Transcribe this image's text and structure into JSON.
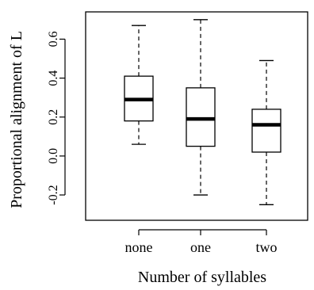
{
  "chart_data": {
    "type": "boxplot",
    "xlabel": "Number of syllables",
    "ylabel": "Proportional alignment of L",
    "categories": [
      "none",
      "one",
      "two"
    ],
    "ylim": [
      -0.33,
      0.74
    ],
    "yticks": [
      -0.2,
      0.0,
      0.2,
      0.4,
      0.6
    ],
    "ytick_labels": [
      "-0.2",
      "0.0",
      "0.2",
      "0.4",
      "0.6"
    ],
    "grid": false,
    "legend": "none",
    "series": [
      {
        "category": "none",
        "whisker_low": 0.06,
        "q1": 0.18,
        "median": 0.29,
        "q3": 0.41,
        "whisker_high": 0.67
      },
      {
        "category": "one",
        "whisker_low": -0.2,
        "q1": 0.05,
        "median": 0.19,
        "q3": 0.35,
        "whisker_high": 0.7
      },
      {
        "category": "two",
        "whisker_low": -0.25,
        "q1": 0.02,
        "median": 0.16,
        "q3": 0.24,
        "whisker_high": 0.49
      }
    ],
    "colors": {
      "box_fill": "#ffffff",
      "stroke": "#000000",
      "median": "#000000"
    }
  }
}
